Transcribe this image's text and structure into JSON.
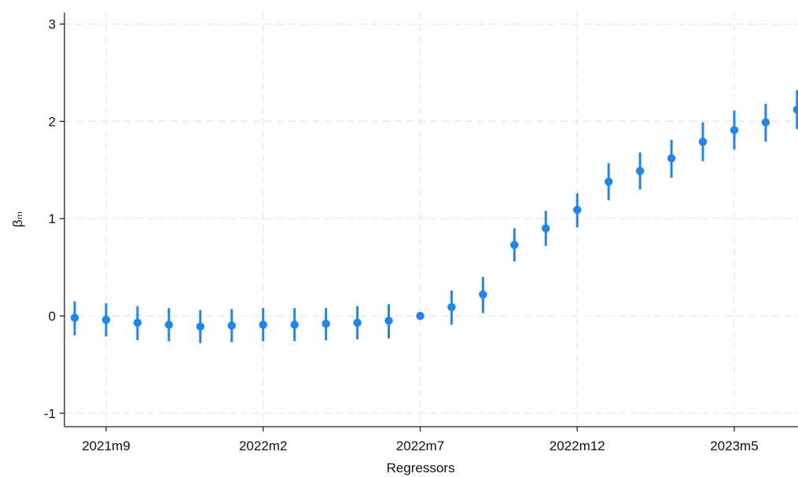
{
  "chart_data": {
    "type": "scatter",
    "title": "",
    "xlabel": "Regressors",
    "ylabel": "βₘ",
    "grid": true,
    "color": "#1f86f0",
    "ylim": [
      -1.1,
      3.1
    ],
    "yticks": [
      -1,
      0,
      1,
      2,
      3
    ],
    "ytick_labels": [
      "-1",
      "0",
      "1",
      "2",
      "3"
    ],
    "xticks": [
      "2021m9",
      "2022m2",
      "2022m7",
      "2022m12",
      "2023m5"
    ],
    "x": [
      "2021m8",
      "2021m9",
      "2021m10",
      "2021m11",
      "2021m12",
      "2022m1",
      "2022m2",
      "2022m3",
      "2022m4",
      "2022m5",
      "2022m6",
      "2022m7",
      "2022m8",
      "2022m9",
      "2022m10",
      "2022m11",
      "2022m12",
      "2023m1",
      "2023m2",
      "2023m3",
      "2023m4",
      "2023m5",
      "2023m6",
      "2023m7"
    ],
    "estimate": [
      -0.02,
      -0.04,
      -0.07,
      -0.09,
      -0.11,
      -0.1,
      -0.09,
      -0.09,
      -0.08,
      -0.07,
      -0.05,
      0.0,
      0.09,
      0.22,
      0.73,
      0.9,
      1.09,
      1.38,
      1.49,
      1.62,
      1.79,
      1.91,
      1.99,
      2.12
    ],
    "ci_low": [
      -0.2,
      -0.21,
      -0.25,
      -0.26,
      -0.28,
      -0.27,
      -0.26,
      -0.26,
      -0.25,
      -0.24,
      -0.23,
      0.0,
      -0.09,
      0.03,
      0.56,
      0.72,
      0.91,
      1.19,
      1.3,
      1.42,
      1.59,
      1.71,
      1.79,
      1.92
    ],
    "ci_high": [
      0.15,
      0.13,
      0.1,
      0.08,
      0.06,
      0.07,
      0.08,
      0.08,
      0.08,
      0.1,
      0.12,
      0.0,
      0.26,
      0.4,
      0.9,
      1.08,
      1.26,
      1.57,
      1.68,
      1.81,
      1.99,
      2.11,
      2.18,
      2.32
    ]
  }
}
